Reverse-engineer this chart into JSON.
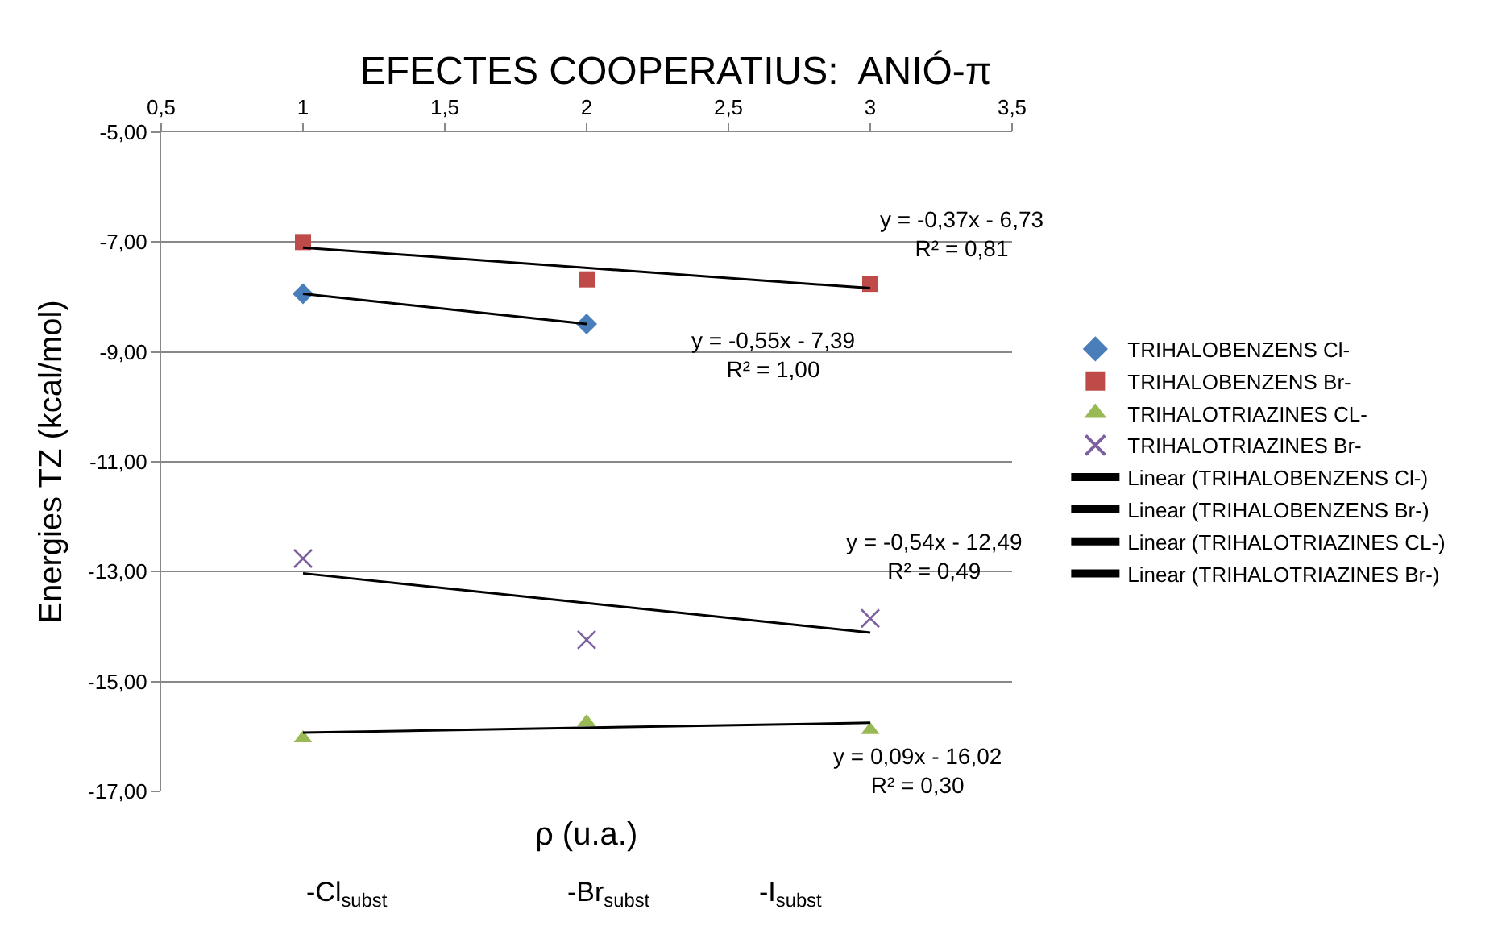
{
  "chart_data": {
    "type": "scatter",
    "title": "EFECTES COOPERATIUS:  ANIÓ-π",
    "xlabel": "ρ (u.a.)",
    "ylabel": "Energies TZ (kcal/mol)",
    "xlim": [
      0.5,
      3.5
    ],
    "xticks": [
      {
        "value": 0.5,
        "label": "0,5"
      },
      1,
      {
        "value": 1.5,
        "label": "1,5"
      },
      2,
      {
        "value": 2.5,
        "label": "2,5"
      },
      3,
      {
        "value": 3.5,
        "label": "3,5"
      }
    ],
    "ylim": [
      -17,
      -5
    ],
    "yticks": [
      {
        "value": -17,
        "label": "-17,00"
      },
      {
        "value": -15,
        "label": "-15,00"
      },
      {
        "value": -13,
        "label": "-13,00"
      },
      {
        "value": -11,
        "label": "-11,00"
      },
      {
        "value": -9,
        "label": "-9,00"
      },
      {
        "value": -7,
        "label": "-7,00"
      },
      {
        "value": -5,
        "label": "-5,00"
      }
    ],
    "grid": "y",
    "legend": "right",
    "series": [
      {
        "name": "TRIHALOBENZENS Cl-",
        "type": "scatter",
        "marker": "diamond",
        "color": "#4a7ebb",
        "x": [
          1,
          2
        ],
        "values": [
          -7.94,
          -8.49
        ]
      },
      {
        "name": "TRIHALOBENZENS Br-",
        "type": "scatter",
        "marker": "square",
        "color": "#be4b48",
        "x": [
          1,
          2,
          3
        ],
        "values": [
          -7.0,
          -7.68,
          -7.76
        ]
      },
      {
        "name": "TRIHALOTRIAZINES CL-",
        "type": "scatter",
        "marker": "triangle",
        "color": "#98b954",
        "x": [
          1,
          2,
          3
        ],
        "values": [
          -16.03,
          -15.74,
          -15.88
        ]
      },
      {
        "name": "TRIHALOTRIAZINES Br-",
        "type": "scatter",
        "marker": "cross",
        "color": "#7d60a0",
        "x": [
          1,
          2,
          3
        ],
        "values": [
          -12.76,
          -14.24,
          -13.85
        ]
      },
      {
        "name": "Linear (TRIHALOBENZENS Cl-)",
        "type": "line",
        "color": "#000000",
        "x": [
          1,
          2
        ],
        "values": [
          -7.94,
          -8.49
        ]
      },
      {
        "name": "Linear (TRIHALOBENZENS Br-)",
        "type": "line",
        "color": "#000000",
        "x": [
          1,
          3
        ],
        "values": [
          -7.1,
          -7.84
        ]
      },
      {
        "name": "Linear (TRIHALOTRIAZINES CL-)",
        "type": "line",
        "color": "#000000",
        "x": [
          1,
          3
        ],
        "values": [
          -15.93,
          -15.75
        ]
      },
      {
        "name": "Linear (TRIHALOTRIAZINES Br-)",
        "type": "line",
        "color": "#000000",
        "x": [
          1,
          3
        ],
        "values": [
          -13.03,
          -14.11
        ]
      }
    ],
    "annotations": [
      "y = -0,37x - 6,73\nR² = 0,81",
      "y = -0,55x - 7,39\nR² = 1,00",
      "y = -0,54x - 12,49\nR² = 0,49",
      "y = 0,09x - 16,02\nR² = 0,30",
      "-Cl$_{subst}$",
      "-Br$_{subst}$",
      "-I$_{subst}$"
    ]
  }
}
